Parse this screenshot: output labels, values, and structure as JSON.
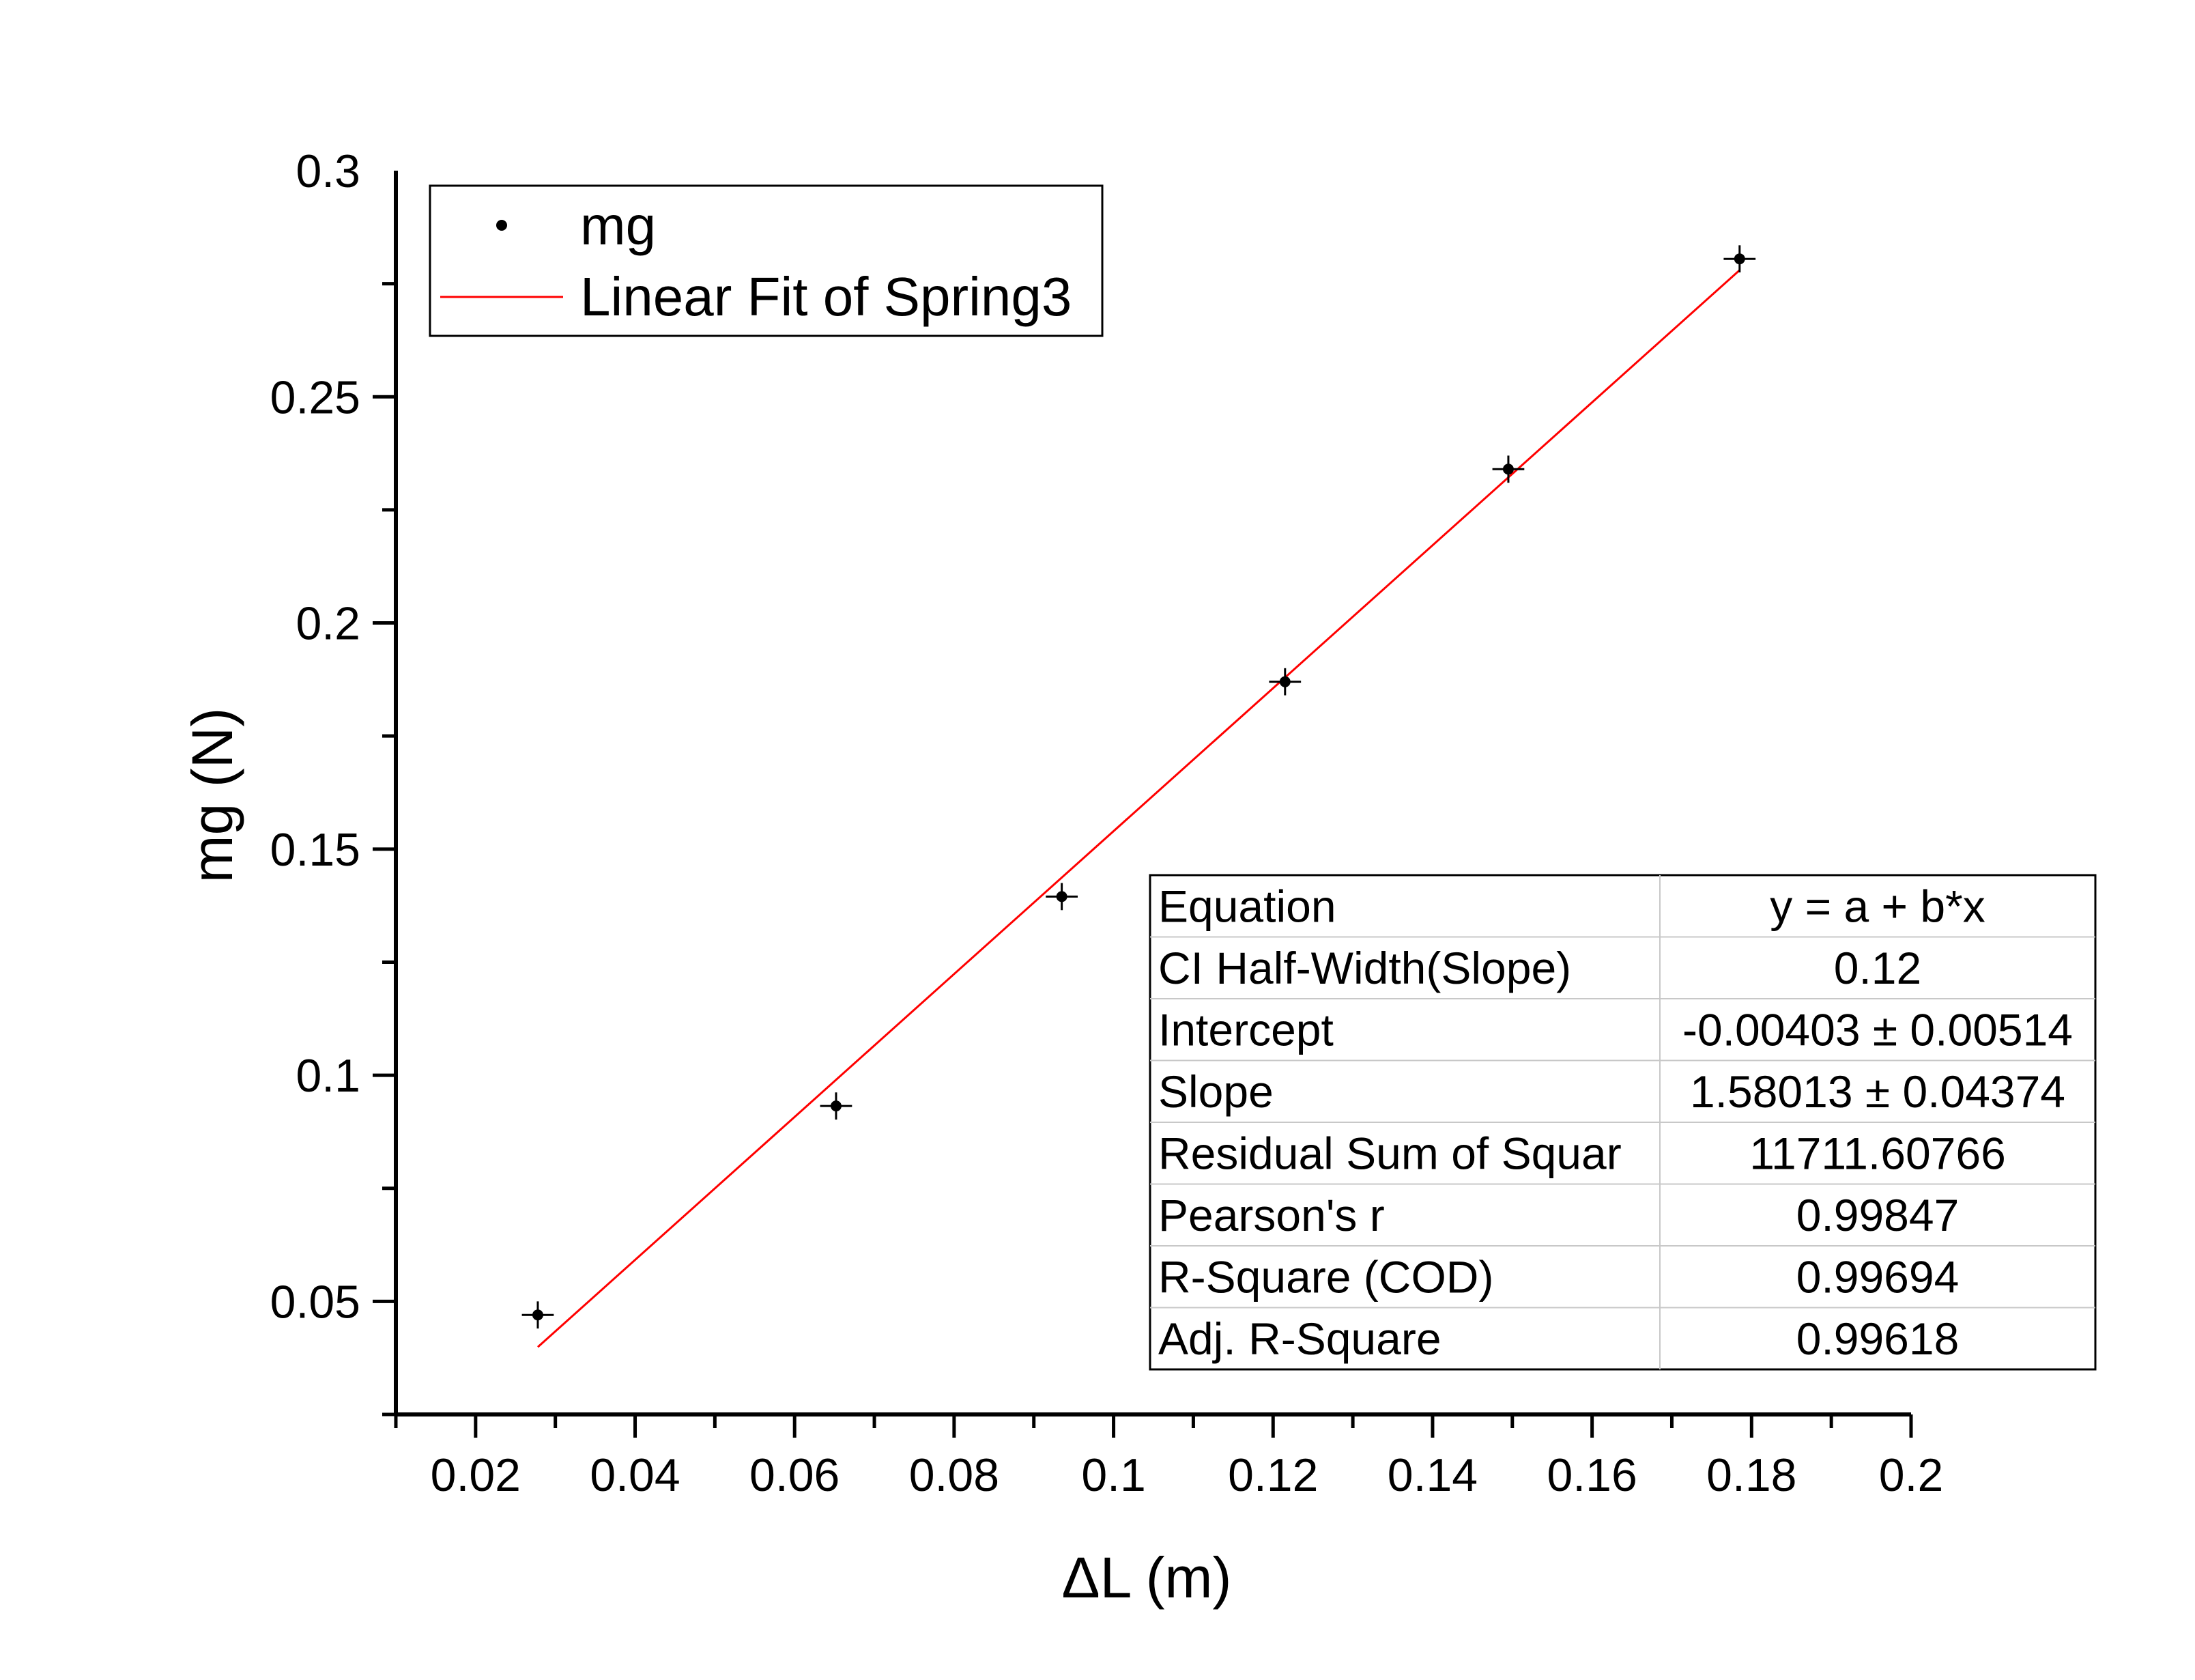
{
  "chart_data": {
    "type": "scatter",
    "xlabel": "ΔL (m)",
    "ylabel": "mg (N)",
    "xlim": [
      0.01,
      0.2
    ],
    "ylim": [
      0.025,
      0.3
    ],
    "xticks": [
      "0.02",
      "0.04",
      "0.06",
      "0.08",
      "0.1",
      "0.12",
      "0.14",
      "0.16",
      "0.18",
      "0.2"
    ],
    "yticks": [
      "0.05",
      "0.1",
      "0.15",
      "0.2",
      "0.25",
      "0.3"
    ],
    "series": [
      {
        "name": "mg",
        "kind": "scatter",
        "color": "#000000",
        "points": [
          {
            "x": 0.0278,
            "y": 0.047
          },
          {
            "x": 0.0652,
            "y": 0.0932
          },
          {
            "x": 0.0935,
            "y": 0.1395
          },
          {
            "x": 0.1215,
            "y": 0.187
          },
          {
            "x": 0.1495,
            "y": 0.234
          },
          {
            "x": 0.1785,
            "y": 0.2805
          }
        ],
        "x_error": 0.002,
        "y_error": 0.003
      },
      {
        "name": "Linear Fit of Spring3",
        "kind": "line",
        "color": "#ff0000",
        "points": [
          {
            "x": 0.0278,
            "y": 0.0399
          },
          {
            "x": 0.1785,
            "y": 0.278
          }
        ]
      }
    ],
    "legend_position": "top-left",
    "fit_table": [
      {
        "label": "Equation",
        "value": "y = a + b*x"
      },
      {
        "label": "CI Half-Width(Slope)",
        "value": "0.12"
      },
      {
        "label": "Intercept",
        "value": "-0.00403 ± 0.00514"
      },
      {
        "label": "Slope",
        "value": "1.58013 ± 0.04374"
      },
      {
        "label": "Residual Sum of Squar",
        "value": "11711.60766"
      },
      {
        "label": "Pearson's r",
        "value": "0.99847"
      },
      {
        "label": "R-Square (COD)",
        "value": "0.99694"
      },
      {
        "label": "Adj. R-Square",
        "value": "0.99618"
      }
    ],
    "fit_table_position": "bottom-right",
    "grid": false
  }
}
